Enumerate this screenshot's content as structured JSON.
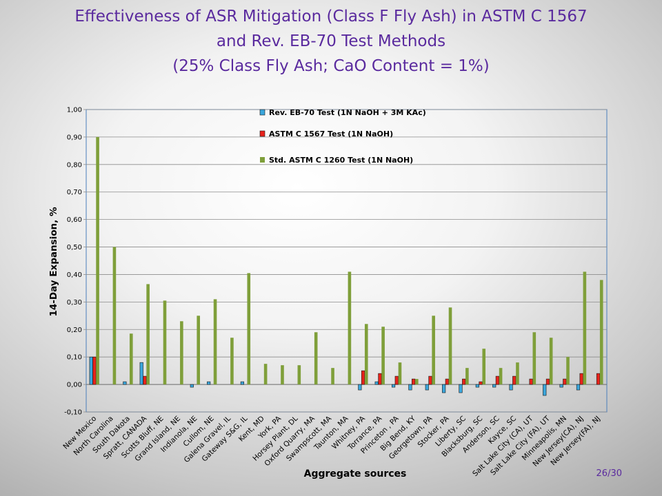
{
  "slide": {
    "title_lines": [
      "Effectiveness of ASR Mitigation (Class F Fly Ash) in ASTM C 1567",
      "and Rev. EB-70 Test Methods",
      "(25% Class Fly Ash; CaO Content = 1%)"
    ],
    "page_number": "26/30"
  },
  "colors": {
    "title": "#5a2a9e",
    "series": [
      "#3aa6dc",
      "#e8221b",
      "#7f9f3a"
    ]
  },
  "chart_data": {
    "type": "bar",
    "xlabel": "Aggregate sources",
    "ylabel": "14-Day Expansion, %",
    "ylim": [
      -0.1,
      1.0
    ],
    "yticks": [
      "-0,10",
      "0,00",
      "0,10",
      "0,20",
      "0,30",
      "0,40",
      "0,50",
      "0,60",
      "0,70",
      "0,80",
      "0,90",
      "1,00"
    ],
    "grid": true,
    "legend_position": "top-center",
    "categories": [
      "New Mexico",
      "North Carolina",
      "South Dakota",
      "Spratt, CANADA",
      "Scotts Bluff, NE",
      "Grand Island, NE",
      "Indianola, NE",
      "Cullom, NE",
      "Galena Gravel, IL",
      "Gateway S&G, IL",
      "Kent, MD",
      "York, PA",
      "Horsey Plant, DL",
      "Oxford Quarry, MA",
      "Swampscott, MA",
      "Taunton, MA",
      "Whitney, PA",
      "Torrance, PA",
      "Princeton , PA",
      "Big Bend, KY",
      "Georgetown, PA",
      "Stocker, PA",
      "Liberty, SC",
      "Blacksburg, SC",
      "Anderson, SC",
      "Kayce, SC",
      "Salt Lake City (CA), UT",
      "Salt Lake City (FA), UT",
      "Minneapolis, MN",
      "New Jersey(CA), NJ",
      "New Jersey(FA), NJ"
    ],
    "series": [
      {
        "name": "Rev. EB-70 Test (1N NaOH + 3M KAc)",
        "values": [
          0.1,
          null,
          0.01,
          0.08,
          null,
          null,
          -0.01,
          0.01,
          null,
          0.01,
          null,
          null,
          null,
          null,
          null,
          null,
          -0.02,
          0.01,
          -0.01,
          -0.02,
          -0.02,
          -0.03,
          -0.03,
          -0.01,
          -0.01,
          -0.02,
          null,
          -0.04,
          -0.01,
          -0.02,
          null
        ]
      },
      {
        "name": "ASTM C 1567 Test (1N NaOH)",
        "values": [
          0.1,
          null,
          null,
          0.03,
          null,
          null,
          null,
          null,
          null,
          null,
          null,
          null,
          null,
          null,
          null,
          null,
          0.05,
          0.04,
          0.03,
          0.02,
          0.03,
          0.02,
          0.02,
          0.01,
          0.03,
          0.03,
          0.02,
          0.02,
          0.02,
          0.04,
          0.04
        ]
      },
      {
        "name": "Std. ASTM C 1260 Test (1N NaOH)",
        "values": [
          0.9,
          0.5,
          0.185,
          0.365,
          0.305,
          0.23,
          0.25,
          0.31,
          0.17,
          0.405,
          0.075,
          0.07,
          0.07,
          0.19,
          0.06,
          0.41,
          0.22,
          0.21,
          0.08,
          0.02,
          0.25,
          0.28,
          0.06,
          0.13,
          0.06,
          0.08,
          0.19,
          0.17,
          0.1,
          0.41,
          0.38
        ]
      }
    ]
  }
}
